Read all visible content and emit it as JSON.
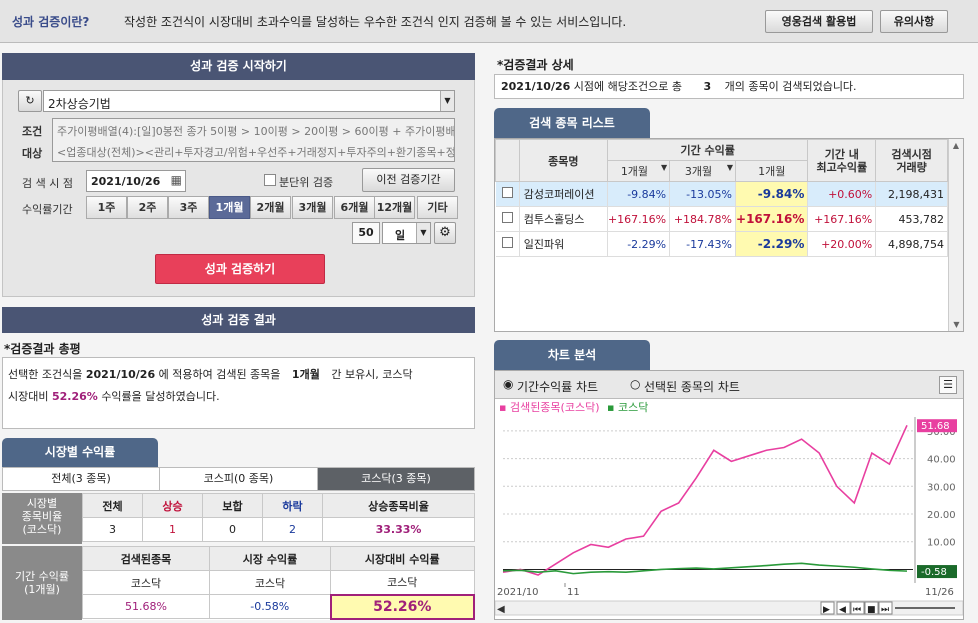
{
  "top": {
    "title": "성과 검증이란?",
    "desc": "작성한 조건식이 시장대비 초과수익를 달성하는 우수한 조건식 인지 검증해 볼 수 있는 서비스입니다.",
    "btn1": "영웅검색 활용법",
    "btn2": "유의사항"
  },
  "start": {
    "header": "성과 검증 시작하기",
    "condition_name": "2차상승기법",
    "cond_label_1": "조건",
    "cond_label_2": "대상",
    "cond_line1": "주가이평배열(4):[일]0봉전 종가 5이평 > 10이평 > 20이평 > 60이평 + 주가이평배",
    "cond_line2": "<업종대상(전체)><관리+투자경고/위험+우선주+거래정지+투자주의+환기종목+정",
    "date_label": "검 색 시 점",
    "date": "2021/10/26",
    "minute_check": "분단위 검증",
    "prev_btn": "이전 검증기간",
    "period_label": "수익률기간",
    "periods": [
      "1주",
      "2주",
      "3주",
      "1개월",
      "2개월",
      "3개월",
      "6개월",
      "12개월",
      "기타"
    ],
    "active_period": "1개월",
    "days": "50",
    "unit": "일",
    "run_btn": "성과 검증하기"
  },
  "result": {
    "header": "성과 검증 결과",
    "summary_title": "*검증결과 총평",
    "line1_pre": "선택한 조건식을",
    "date": "2021/10/26",
    "line1_mid": "에 적용하여 검색된 종목을",
    "period": "1개월",
    "line1_post": "간 보유시, 코스닥",
    "line2_pre": "시장대비",
    "pct": "52.26%",
    "line2_post": "수익률을 달성하였습니다."
  },
  "market": {
    "header": "시장별 수익률",
    "tabs": [
      "전체(3 종목)",
      "코스피(0 종목)",
      "코스닥(3 종목)"
    ],
    "ratio_label": "시장별\n종목비율\n(코스닥)",
    "cols": [
      "전체",
      "상승",
      "보합",
      "하락",
      "상승종목비율"
    ],
    "vals": [
      "3",
      "1",
      "0",
      "2",
      "33.33%"
    ],
    "ret_label": "기간 수익률\n(1개월)",
    "cols2": [
      "검색된종목",
      "시장 수익률",
      "시장대비 수익률"
    ],
    "mkts": [
      "코스닥",
      "코스닥",
      "코스닥"
    ],
    "rets": [
      "51.68%",
      "-0.58%",
      "52.26%"
    ]
  },
  "detail": {
    "title": "*검증결과 상세",
    "line_date": "2021/10/26",
    "line_mid": "시점에 해당조건으로 총",
    "count": "3",
    "line_post": "개의 종목이 검색되었습니다."
  },
  "list": {
    "header": "검색 종목 리스트",
    "col_name": "종목명",
    "col_period": "기간 수익률",
    "sub1": "1개월",
    "sub2": "3개월",
    "sub3": "1개월",
    "col_max": "기간 내\n최고수익률",
    "col_vol": "검색시점\n거래량",
    "rows": [
      {
        "name": "감성코퍼레이션",
        "a": "-9.84%",
        "b": "-13.05%",
        "c": "-9.84%",
        "max": "+0.60%",
        "vol": "2,198,431"
      },
      {
        "name": "컴투스홀딩스",
        "a": "+167.16%",
        "b": "+184.78%",
        "c": "+167.16%",
        "max": "+167.16%",
        "vol": "453,782"
      },
      {
        "name": "일진파워",
        "a": "-2.29%",
        "b": "-17.43%",
        "c": "-2.29%",
        "max": "+20.00%",
        "vol": "4,898,754"
      }
    ]
  },
  "chartpanel": {
    "header": "차트 분석",
    "radio1": "기간수익률 차트",
    "radio2": "선택된 종목의 차트"
  },
  "colors": {
    "header": "#4a5574",
    "tab": "#4f6788",
    "run": "#e8405a",
    "pink": "#e83fa0",
    "green": "#2a9a3a"
  },
  "chart_data": {
    "type": "line",
    "series": [
      {
        "name": "검색된종목(코스닥)",
        "values": [
          -1,
          0,
          -2,
          2,
          6,
          9,
          8,
          11,
          12,
          21,
          24,
          33,
          43,
          39,
          41,
          43,
          44,
          47,
          42,
          30,
          24,
          42,
          38,
          52
        ]
      },
      {
        "name": "코스닥",
        "values": [
          -0.5,
          -0.3,
          -1,
          -0.5,
          -1.5,
          -1,
          -0.8,
          -1,
          -0.5,
          0,
          0.3,
          0.5,
          0.2,
          0.6,
          1,
          1.4,
          1.9,
          2.2,
          1.6,
          1.2,
          0.8,
          0.2,
          -0.3,
          -0.6
        ]
      }
    ],
    "ylim": [
      -2,
      55
    ],
    "yticks": [
      "50.00",
      "40.00",
      "30.00",
      "20.00",
      "10.00"
    ],
    "xlabels": [
      "2021/10",
      "11",
      "11/26"
    ],
    "last_pink": "51.68",
    "last_green": "-0.58"
  }
}
